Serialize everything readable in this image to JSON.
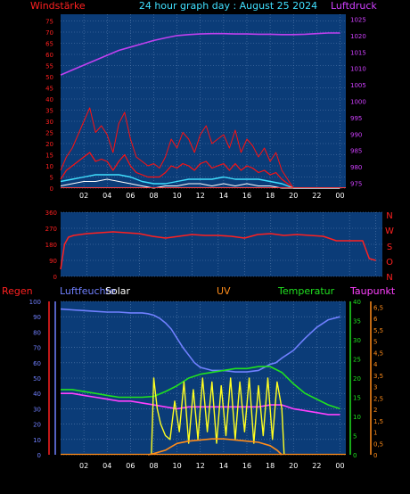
{
  "title": "24 hour graph day : August 25 2024",
  "colors": {
    "background": "#000000",
    "plot_bg": "#0b3c78",
    "grid": "#5a7fb0",
    "axis_text": "#ffffff",
    "wind_label": "#ff2020",
    "pressure_label": "#d040ff",
    "title": "#40e0ff",
    "wind_series": "#ff1010",
    "gust_series": "#ff1010",
    "wind_avg_series": "#40e0ff",
    "wind_low_series": "#ffffff",
    "pressure_series": "#c040f0",
    "direction_series": "#ff2020",
    "rain": "#ff2020",
    "humidity": "#7080ff",
    "solar": "#ffffff",
    "uv": "#ff8c1a",
    "temperature": "#20e020",
    "dewpoint": "#ff40ff",
    "solar_series": "#ffff20"
  },
  "chart_data": [
    {
      "type": "line",
      "name": "wind-pressure",
      "left_label": "Windstärke",
      "right_label": "Luftdruck",
      "x_ticks": [
        "02",
        "04",
        "06",
        "08",
        "10",
        "12",
        "14",
        "16",
        "18",
        "20",
        "22",
        "00"
      ],
      "left_ticks": [
        "0",
        "5",
        "10",
        "15",
        "20",
        "25",
        "30",
        "35",
        "40",
        "45",
        "50",
        "55",
        "60",
        "65",
        "70",
        "75"
      ],
      "right_ticks": [
        "975",
        "980",
        "985",
        "990",
        "995",
        "1000",
        "1005",
        "1010",
        "1015",
        "1020",
        "1025"
      ],
      "left_ylim": [
        0,
        78
      ],
      "right_ylim": [
        973.5,
        1026.5
      ],
      "x_range_hours": [
        0,
        24.5
      ],
      "series": [
        {
          "role": "pressure",
          "axis": "right",
          "x": [
            0,
            1,
            2,
            3,
            4,
            5,
            6,
            7,
            8,
            9,
            10,
            11,
            12,
            13,
            14,
            15,
            16,
            17,
            18,
            19,
            20,
            21,
            22,
            23,
            24
          ],
          "values": [
            1008,
            1009.5,
            1011,
            1012.5,
            1014,
            1015.5,
            1016.5,
            1017.5,
            1018.5,
            1019.3,
            1020,
            1020.3,
            1020.5,
            1020.6,
            1020.6,
            1020.5,
            1020.5,
            1020.4,
            1020.4,
            1020.3,
            1020.3,
            1020.4,
            1020.6,
            1020.8,
            1020.8
          ]
        },
        {
          "role": "gust",
          "axis": "left",
          "x": [
            0,
            0.5,
            1,
            1.5,
            2,
            2.5,
            3,
            3.5,
            4,
            4.5,
            5,
            5.5,
            6,
            6.5,
            7,
            7.5,
            8,
            8.5,
            9,
            9.5,
            10,
            10.5,
            11,
            11.5,
            12,
            12.5,
            13,
            13.5,
            14,
            14.5,
            15,
            15.5,
            16,
            16.5,
            17,
            17.5,
            18,
            18.5,
            19,
            19.5,
            20,
            21,
            22,
            23,
            24
          ],
          "values": [
            8,
            14,
            18,
            24,
            30,
            36,
            25,
            28,
            24,
            16,
            29,
            34,
            22,
            14,
            12,
            10,
            11,
            9,
            14,
            22,
            18,
            25,
            22,
            16,
            24,
            28,
            20,
            22,
            24,
            18,
            26,
            16,
            22,
            19,
            14,
            18,
            12,
            16,
            8,
            4,
            0,
            0,
            0,
            0,
            0
          ]
        },
        {
          "role": "wind",
          "axis": "left",
          "x": [
            0,
            0.5,
            1,
            1.5,
            2,
            2.5,
            3,
            3.5,
            4,
            4.5,
            5,
            5.5,
            6,
            6.5,
            7,
            7.5,
            8,
            8.5,
            9,
            9.5,
            10,
            10.5,
            11,
            11.5,
            12,
            12.5,
            13,
            13.5,
            14,
            14.5,
            15,
            15.5,
            16,
            16.5,
            17,
            17.5,
            18,
            18.5,
            19,
            19.5,
            20,
            21,
            22,
            23,
            24
          ],
          "values": [
            4,
            8,
            10,
            12,
            14,
            16,
            12,
            13,
            12,
            8,
            12,
            15,
            10,
            7,
            6,
            5,
            5,
            5,
            7,
            10,
            9,
            11,
            10,
            8,
            11,
            12,
            9,
            10,
            11,
            8,
            11,
            8,
            10,
            9,
            7,
            8,
            6,
            7,
            4,
            2,
            0,
            0,
            0,
            0,
            0
          ]
        },
        {
          "role": "wind_avg",
          "axis": "left",
          "x": [
            0,
            1,
            2,
            3,
            4,
            5,
            6,
            7,
            8,
            9,
            10,
            11,
            12,
            13,
            14,
            15,
            16,
            17,
            18,
            19,
            20,
            21,
            22,
            23,
            24
          ],
          "values": [
            3,
            4,
            5,
            6,
            6,
            6,
            5,
            3,
            2,
            2,
            3,
            4,
            4,
            4,
            5,
            4,
            4,
            4,
            3,
            2,
            0,
            0,
            0,
            0,
            0
          ]
        },
        {
          "role": "wind_low",
          "axis": "left",
          "x": [
            0,
            1,
            2,
            3,
            4,
            5,
            6,
            7,
            8,
            9,
            10,
            11,
            12,
            13,
            14,
            15,
            16,
            17,
            18,
            19,
            20,
            21,
            22,
            23,
            24
          ],
          "values": [
            1,
            2,
            3,
            3,
            4,
            3,
            2,
            1,
            0,
            1,
            1,
            2,
            2,
            1,
            2,
            1,
            2,
            1,
            1,
            0,
            0,
            0,
            0,
            0,
            0
          ]
        }
      ]
    },
    {
      "type": "line",
      "name": "wind-direction",
      "right_labels": [
        "N",
        "W",
        "S",
        "O",
        "N"
      ],
      "left_ticks": [
        "0",
        "90",
        "180",
        "270",
        "360"
      ],
      "ylim": [
        0,
        360
      ],
      "x_range_hours": [
        0,
        24.5
      ],
      "series": [
        {
          "role": "direction",
          "x": [
            0,
            0.3,
            0.6,
            1,
            2,
            3,
            4,
            5,
            6,
            7,
            8,
            9,
            10,
            11,
            12,
            13,
            14,
            15,
            16,
            17,
            18,
            19,
            20,
            21,
            22,
            23,
            23.5,
            24
          ],
          "values": [
            40,
            180,
            220,
            230,
            240,
            245,
            250,
            245,
            240,
            225,
            215,
            225,
            235,
            230,
            230,
            225,
            215,
            235,
            240,
            230,
            235,
            230,
            225,
            200,
            200,
            200,
            100,
            90
          ]
        }
      ]
    },
    {
      "type": "line",
      "name": "rain-humidity-temperature",
      "labels": {
        "rain": "Regen",
        "humidity": "Luftfeuchte",
        "solar": "Solar",
        "uv": "UV",
        "temperature": "Temperatur",
        "dewpoint": "Taupunkt"
      },
      "x_ticks": [
        "02",
        "04",
        "06",
        "08",
        "10",
        "12",
        "14",
        "16",
        "18",
        "20",
        "22",
        "00"
      ],
      "left_ticks": [
        "0",
        "10",
        "20",
        "30",
        "40",
        "50",
        "60",
        "70",
        "80",
        "90",
        "100"
      ],
      "temp_ticks": [
        "0",
        "5",
        "10",
        "15",
        "20",
        "25",
        "30",
        "35",
        "40"
      ],
      "uv_ticks": [
        "0",
        "0,5",
        "1",
        "1,5",
        "2",
        "2,5",
        "3",
        "3,5",
        "4",
        "4,5",
        "5",
        "5,5",
        "6",
        "6,5"
      ],
      "left_ylim": [
        0,
        100
      ],
      "temp_ylim": [
        0,
        40
      ],
      "uv_ylim": [
        0,
        6.75
      ],
      "x_range_hours": [
        0,
        24.5
      ],
      "series": [
        {
          "role": "humidity",
          "axis": "left",
          "x": [
            0,
            1,
            2,
            3,
            4,
            5,
            6,
            7,
            7.5,
            8,
            8.5,
            9,
            9.5,
            10,
            10.5,
            11,
            11.5,
            12,
            13,
            14,
            15,
            16,
            17,
            17.5,
            18,
            18.5,
            19,
            20,
            21,
            22,
            23,
            24
          ],
          "values": [
            95,
            94.5,
            94,
            93.5,
            93,
            93,
            92.5,
            92.5,
            92,
            91,
            89,
            86,
            82,
            76,
            70,
            65,
            60,
            57,
            55,
            55,
            54,
            54,
            55,
            57,
            59,
            60,
            63,
            68,
            76,
            83,
            88,
            90
          ]
        },
        {
          "role": "temperature",
          "axis": "temp",
          "x": [
            0,
            1,
            2,
            3,
            4,
            5,
            6,
            7,
            8,
            9,
            10,
            11,
            12,
            13,
            14,
            15,
            16,
            17,
            18,
            19,
            20,
            21,
            22,
            23,
            24
          ],
          "values": [
            17,
            17,
            16.5,
            16,
            15.5,
            15,
            15,
            15,
            15.2,
            16.5,
            18,
            20,
            21,
            21.5,
            22,
            22.5,
            22.5,
            23,
            23,
            21.5,
            18.5,
            16,
            14.5,
            13,
            12
          ]
        },
        {
          "role": "dewpoint",
          "axis": "temp",
          "x": [
            0,
            1,
            2,
            3,
            4,
            5,
            6,
            7,
            8,
            9,
            10,
            11,
            12,
            13,
            14,
            15,
            16,
            17,
            18,
            19,
            20,
            21,
            22,
            23,
            24
          ],
          "values": [
            16,
            16,
            15.5,
            15,
            14.5,
            14,
            14,
            13.5,
            13,
            12.5,
            12,
            12.5,
            12.5,
            12.5,
            12.5,
            12.5,
            12.5,
            12.5,
            13,
            13,
            12,
            11.5,
            11,
            10.5,
            10.5
          ]
        },
        {
          "role": "solar",
          "axis": "temp",
          "x": [
            7.8,
            8,
            8.3,
            8.6,
            9,
            9.4,
            9.8,
            10.2,
            10.6,
            11,
            11.4,
            11.8,
            12.2,
            12.6,
            13,
            13.4,
            13.8,
            14.2,
            14.6,
            15,
            15.4,
            15.8,
            16.2,
            16.6,
            17,
            17.4,
            17.8,
            18.2,
            18.6,
            19,
            19.2
          ],
          "values": [
            0,
            20,
            12,
            8,
            5,
            4,
            14,
            6,
            19,
            3,
            17,
            4,
            20,
            6,
            19,
            3,
            18,
            5,
            20,
            4,
            19,
            6,
            20,
            3,
            18,
            5,
            20,
            4,
            19,
            12,
            0
          ]
        },
        {
          "role": "uv",
          "axis": "uv",
          "x": [
            7.5,
            8,
            9,
            9.5,
            10,
            11,
            12,
            13,
            14,
            15,
            16,
            17,
            18,
            18.6,
            19
          ],
          "values": [
            0,
            0.05,
            0.2,
            0.35,
            0.5,
            0.6,
            0.65,
            0.7,
            0.7,
            0.65,
            0.6,
            0.55,
            0.4,
            0.2,
            0
          ]
        }
      ]
    }
  ]
}
